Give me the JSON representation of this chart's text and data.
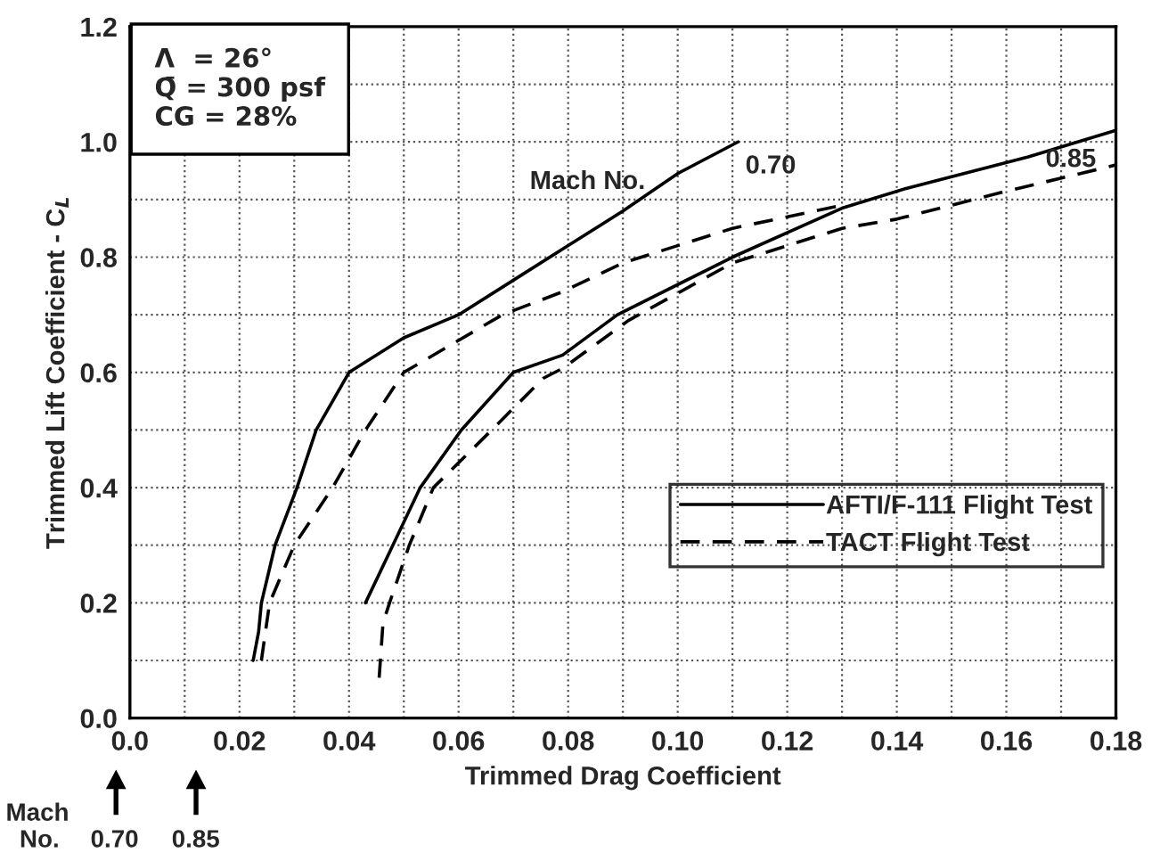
{
  "chart_data": {
    "type": "line",
    "xlabel": "Trimmed Drag Coefficient",
    "ylabel": "Trimmed Lift Coefficient - C$_{L}$",
    "xlim": [
      0,
      0.18
    ],
    "ylim": [
      0,
      1.2
    ],
    "xticks": [
      {
        "value": 0,
        "label": "0.0"
      },
      {
        "value": 0.01,
        "label": null
      },
      0.02,
      {
        "value": 0.03,
        "label": null
      },
      0.04,
      {
        "value": 0.05,
        "label": null
      },
      0.06,
      {
        "value": 0.07,
        "label": null
      },
      0.08,
      {
        "value": 0.09,
        "label": null
      },
      {
        "value": 0.1,
        "label": "0.10"
      },
      {
        "value": 0.11,
        "label": null
      },
      0.12,
      {
        "value": 0.13,
        "label": null
      },
      0.14,
      {
        "value": 0.15,
        "label": null
      },
      0.16,
      {
        "value": 0.17,
        "label": null
      },
      0.18
    ],
    "yticks": [
      {
        "value": 0,
        "label": "0.0"
      },
      {
        "value": 0.1,
        "label": null
      },
      0.2,
      {
        "value": 0.3,
        "label": null
      },
      0.4,
      {
        "value": 0.5,
        "label": null
      },
      0.6,
      {
        "value": 0.7,
        "label": null
      },
      0.8,
      {
        "value": 0.9,
        "label": null
      },
      {
        "value": 1,
        "label": "1.0"
      },
      {
        "value": 1.1,
        "label": null
      },
      1.2
    ],
    "grid": true,
    "legend": "right",
    "marker": "none",
    "series": [
      {
        "name": "AFTI/F-111 Flight Test",
        "color": "#000000",
        "line_style": "solid",
        "x": [
          0.0225,
          0.0235,
          0.024,
          0.0265,
          0.0305,
          0.034,
          0.04,
          0.05,
          0.06,
          0.07,
          0.08,
          0.09,
          0.1,
          0.111
        ],
        "values": [
          0.1,
          0.15,
          0.2,
          0.3,
          0.4,
          0.5,
          0.6,
          0.66,
          0.7,
          0.76,
          0.82,
          0.88,
          0.945,
          1.0
        ]
      },
      {
        "name": "TACT Flight Test",
        "color": "#000000",
        "line_style": "dashed",
        "x": [
          0.024,
          0.0255,
          0.03,
          0.037,
          0.043,
          0.05,
          0.068,
          0.079,
          0.09,
          0.11,
          0.13
        ],
        "values": [
          0.1,
          0.2,
          0.3,
          0.4,
          0.5,
          0.6,
          0.7,
          0.74,
          0.79,
          0.85,
          0.89
        ]
      },
      {
        "color": "#000000",
        "line_style": "solid",
        "x": [
          0.043,
          0.048,
          0.053,
          0.0605,
          0.07,
          0.079,
          0.089,
          0.11,
          0.13,
          0.142,
          0.164,
          0.18
        ],
        "values": [
          0.2,
          0.3,
          0.4,
          0.5,
          0.6,
          0.63,
          0.7,
          0.8,
          0.885,
          0.92,
          0.974,
          1.02
        ]
      },
      {
        "color": "#000000",
        "line_style": "dashed",
        "x": [
          0.0455,
          0.0462,
          0.0474,
          0.051,
          0.0554,
          0.065,
          0.0755,
          0.079,
          0.091,
          0.11,
          0.13,
          0.14,
          0.159,
          0.18
        ],
        "values": [
          0.07,
          0.165,
          0.2,
          0.3,
          0.4,
          0.49,
          0.59,
          0.607,
          0.69,
          0.79,
          0.85,
          0.866,
          0.912,
          0.96
        ]
      }
    ],
    "annotations": [
      "Λ  = 26°\nQ̄ = 300 psf\nCG = 28%",
      "Mach No.",
      {
        "text": "0.70",
        "x": 0.111,
        "y": 1.0
      },
      {
        "text": "0.85",
        "x": 0.18,
        "y": 1.02
      },
      "Mach\n  No.",
      "0.70",
      "0.85"
    ]
  }
}
